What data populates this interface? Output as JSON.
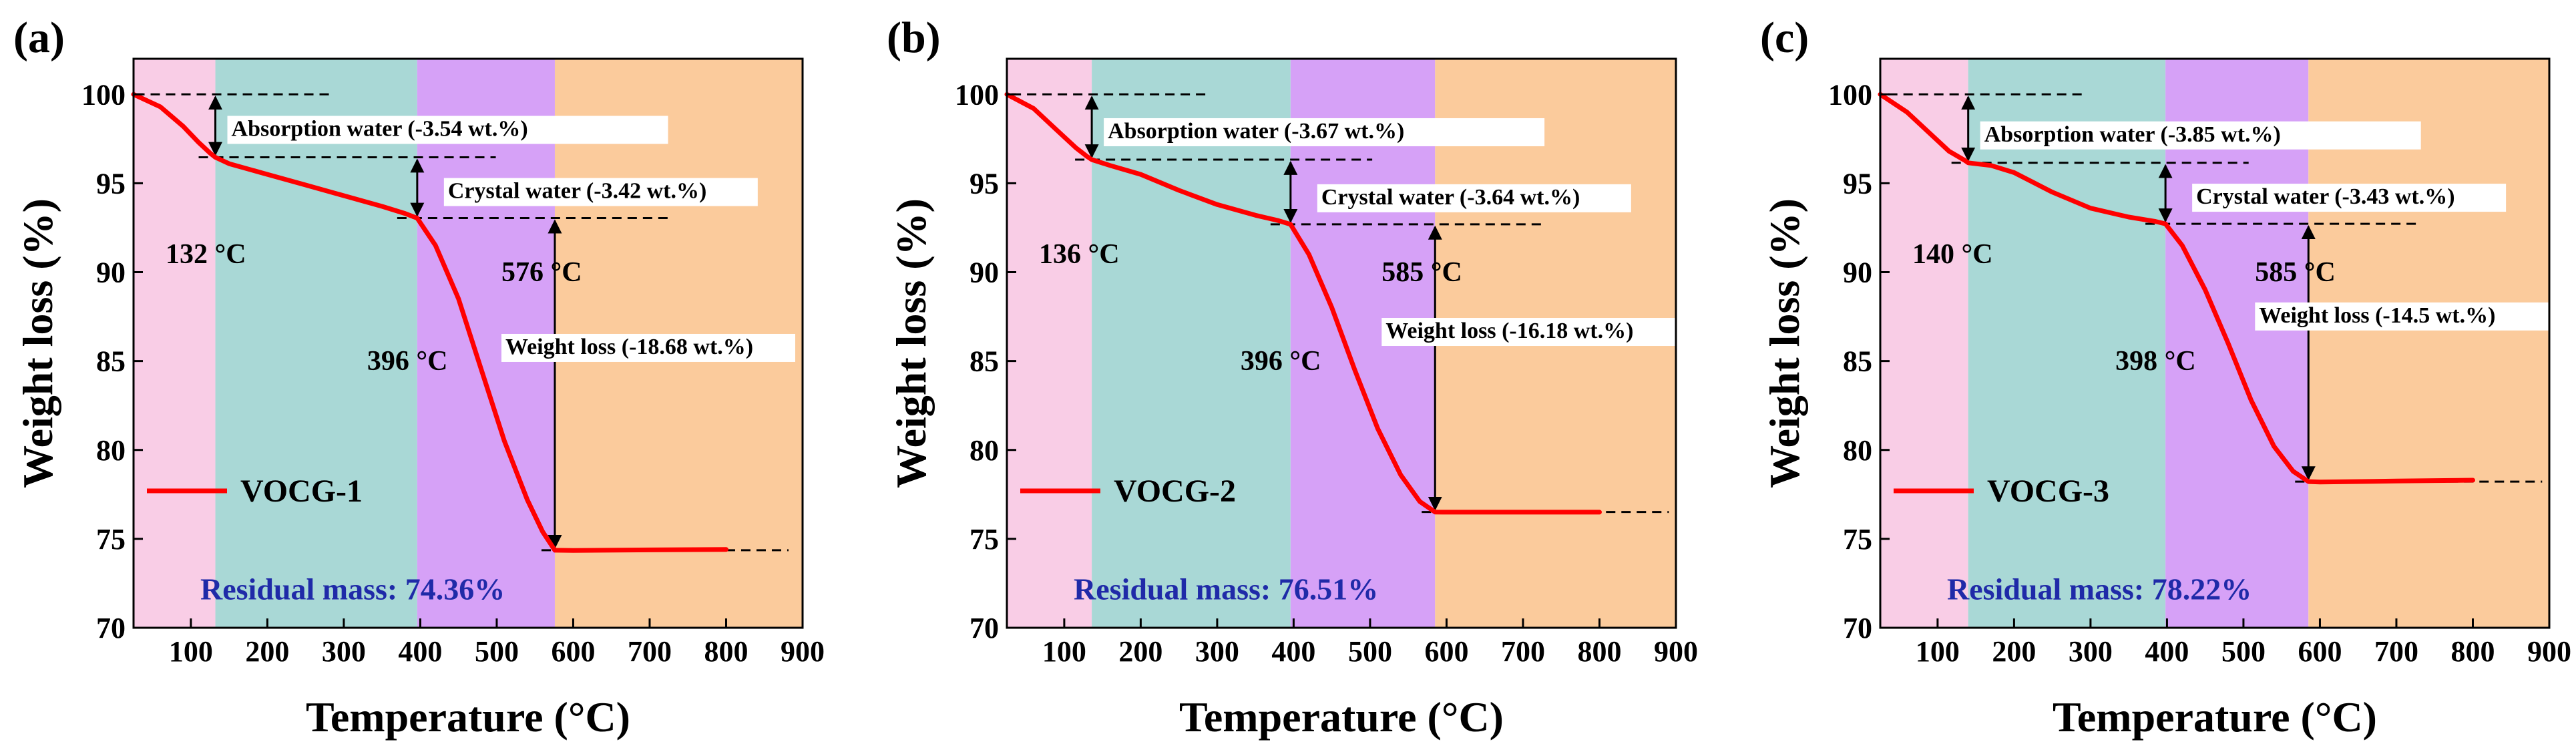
{
  "figure": {
    "x_axis_title": "Temperature (°C)",
    "y_axis_title": "Weight loss (%)",
    "colors": {
      "line": "#ff0000",
      "region1": "#f9cde6",
      "region2": "#a9d8d6",
      "region3": "#d6a1f7",
      "region4": "#fbcb9c",
      "residual_text": "#1f2aa8"
    }
  },
  "chart_data": [
    {
      "type": "line",
      "panel_label": "(a)",
      "xlabel": "Temperature (°C)",
      "ylabel": "Weight loss (%)",
      "xlim": [
        25,
        900
      ],
      "ylim": [
        70,
        102
      ],
      "xticks": [
        100,
        200,
        300,
        400,
        500,
        600,
        700,
        800,
        900
      ],
      "yticks": [
        70,
        75,
        80,
        85,
        90,
        95,
        100
      ],
      "regions": [
        [
          25,
          132
        ],
        [
          132,
          396
        ],
        [
          396,
          576
        ],
        [
          576,
          900
        ]
      ],
      "series": [
        {
          "name": "VOCG-1",
          "x": [
            25,
            60,
            90,
            110,
            125,
            132,
            150,
            200,
            250,
            300,
            350,
            380,
            396,
            420,
            450,
            480,
            510,
            540,
            560,
            576,
            600,
            700,
            800
          ],
          "y": [
            100,
            99.3,
            98.2,
            97.3,
            96.7,
            96.46,
            96.1,
            95.5,
            94.9,
            94.3,
            93.7,
            93.3,
            93.04,
            91.5,
            88.5,
            84.5,
            80.5,
            77.2,
            75.4,
            74.36,
            74.35,
            74.38,
            74.4
          ]
        }
      ],
      "guide_levels": [
        100,
        96.46,
        93.04,
        74.36
      ],
      "annotations": {
        "absorption": "Absorption  water (-3.54 wt.%)",
        "crystal": "Crystal water (-3.42 wt.%)",
        "weight_loss": "Weight loss (-18.68 wt.%)",
        "t1": "132 °C",
        "t2": "396 °C",
        "t3": "576 °C",
        "residual": "Residual mass: 74.36%"
      }
    },
    {
      "type": "line",
      "panel_label": "(b)",
      "xlabel": "Temperature (°C)",
      "ylabel": "Weight loss (%)",
      "xlim": [
        25,
        900
      ],
      "ylim": [
        70,
        102
      ],
      "xticks": [
        100,
        200,
        300,
        400,
        500,
        600,
        700,
        800,
        900
      ],
      "yticks": [
        70,
        75,
        80,
        85,
        90,
        95,
        100
      ],
      "regions": [
        [
          25,
          136
        ],
        [
          136,
          396
        ],
        [
          396,
          585
        ],
        [
          585,
          900
        ]
      ],
      "series": [
        {
          "name": "VOCG-2",
          "x": [
            25,
            60,
            90,
            115,
            130,
            136,
            160,
            200,
            250,
            300,
            350,
            380,
            396,
            420,
            450,
            480,
            510,
            540,
            565,
            585,
            600,
            700,
            800
          ],
          "y": [
            100,
            99.2,
            98.0,
            97.0,
            96.5,
            96.33,
            96.0,
            95.5,
            94.6,
            93.8,
            93.2,
            92.9,
            92.69,
            91.0,
            88.0,
            84.5,
            81.2,
            78.6,
            77.1,
            76.51,
            76.5,
            76.5,
            76.5
          ]
        }
      ],
      "guide_levels": [
        100,
        96.33,
        92.69,
        76.51
      ],
      "annotations": {
        "absorption": "Absorption  water (-3.67 wt.%)",
        "crystal": "Crystal water (-3.64 wt.%)",
        "weight_loss": "Weight loss (-16.18 wt.%)",
        "t1": "136 °C",
        "t2": "396 °C",
        "t3": "585 °C",
        "residual": "Residual mass: 76.51%"
      }
    },
    {
      "type": "line",
      "panel_label": "(c)",
      "xlabel": "Temperature (°C)",
      "ylabel": "Weight loss (%)",
      "xlim": [
        25,
        900
      ],
      "ylim": [
        70,
        102
      ],
      "xticks": [
        100,
        200,
        300,
        400,
        500,
        600,
        700,
        800,
        900
      ],
      "yticks": [
        70,
        75,
        80,
        85,
        90,
        95,
        100
      ],
      "regions": [
        [
          25,
          140
        ],
        [
          140,
          398
        ],
        [
          398,
          585
        ],
        [
          585,
          900
        ]
      ],
      "series": [
        {
          "name": "VOCG-3",
          "x": [
            25,
            60,
            90,
            115,
            135,
            140,
            170,
            200,
            250,
            300,
            350,
            385,
            398,
            420,
            450,
            480,
            510,
            540,
            565,
            585,
            600,
            700,
            800
          ],
          "y": [
            100,
            99.0,
            97.8,
            96.8,
            96.3,
            96.15,
            96.0,
            95.6,
            94.5,
            93.6,
            93.1,
            92.85,
            92.72,
            91.5,
            89.0,
            86.0,
            82.8,
            80.2,
            78.8,
            78.22,
            78.2,
            78.25,
            78.3
          ]
        }
      ],
      "guide_levels": [
        100,
        96.15,
        92.72,
        78.22
      ],
      "annotations": {
        "absorption": "Absorption  water (-3.85 wt.%)",
        "crystal": "Crystal water (-3.43 wt.%)",
        "weight_loss": "Weight loss (-14.5 wt.%)",
        "t1": "140 °C",
        "t2": "398 °C",
        "t3": "585 °C",
        "residual": "Residual mass: 78.22%"
      }
    }
  ]
}
